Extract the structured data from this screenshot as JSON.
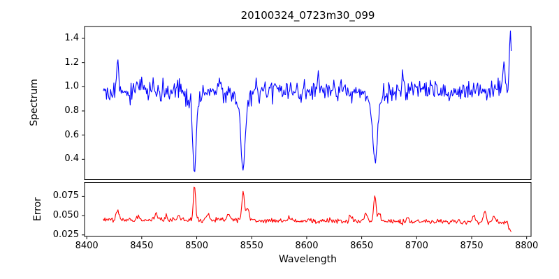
{
  "chart_data": {
    "type": "line",
    "title": "20100324_0723m30_099",
    "xlabel": "Wavelength",
    "xlim": [
      8398,
      8804
    ],
    "x_ticks": [
      "8400",
      "8450",
      "8500",
      "8550",
      "8600",
      "8650",
      "8700",
      "8750",
      "8800"
    ],
    "x_data_range": [
      8415,
      8786
    ],
    "n_points": 500,
    "seed": 20100324,
    "legend": "none",
    "grid": false,
    "panels": [
      {
        "name": "spectrum",
        "ylabel": "Spectrum",
        "ylim": [
          0.232,
          1.498
        ],
        "y_ticks": [
          "1.4",
          "1.2",
          "1.0",
          "0.8",
          "0.6",
          "0.4"
        ],
        "line_color": "#0000ff",
        "continuum_level": 0.965,
        "key_points": [
          {
            "x": 8428,
            "y": 1.25,
            "type": "emission-spike"
          },
          {
            "x": 8498,
            "y": 0.29,
            "type": "absorption-minimum"
          },
          {
            "x": 8542,
            "y": 0.31,
            "type": "absorption-minimum"
          },
          {
            "x": 8662,
            "y": 0.4,
            "type": "absorption-minimum"
          },
          {
            "x": 8785,
            "y": 1.43,
            "type": "edge-spike"
          }
        ],
        "synthesis": {
          "baseline": 0.965,
          "noise_sigma": 0.045,
          "absorptions": [
            {
              "center": 8498.0,
              "core_depth": 0.58,
              "core_sigma": 1.4,
              "wing_depth": 0.12,
              "wing_sigma": 5.0
            },
            {
              "center": 8542.1,
              "core_depth": 0.56,
              "core_sigma": 1.8,
              "wing_depth": 0.12,
              "wing_sigma": 6.0
            },
            {
              "center": 8662.1,
              "core_depth": 0.47,
              "core_sigma": 2.2,
              "wing_depth": 0.115,
              "wing_sigma": 7.0
            }
          ],
          "emissions": [
            {
              "center": 8428.0,
              "height": 0.29,
              "sigma": 0.9
            },
            {
              "center": 8520.0,
              "height": 0.17,
              "sigma": 0.7
            },
            {
              "center": 8610.0,
              "height": 0.14,
              "sigma": 0.7
            },
            {
              "center": 8687.0,
              "height": 0.16,
              "sigma": 0.7
            },
            {
              "center": 8779.0,
              "height": 0.2,
              "sigma": 0.8
            },
            {
              "center": 8785.3,
              "height": 0.46,
              "sigma": 0.9
            }
          ]
        }
      },
      {
        "name": "error",
        "ylabel": "Error",
        "ylim": [
          0.023,
          0.093
        ],
        "y_ticks": [
          "0.075",
          "0.050",
          "0.025"
        ],
        "line_color": "#ff0000",
        "baseline_level": 0.044,
        "key_points": [
          {
            "x": 8428,
            "y": 0.057,
            "type": "spike"
          },
          {
            "x": 8498,
            "y": 0.09,
            "type": "spike"
          },
          {
            "x": 8542,
            "y": 0.081,
            "type": "spike"
          },
          {
            "x": 8662,
            "y": 0.078,
            "type": "spike"
          },
          {
            "x": 8786,
            "y": 0.03,
            "type": "edge-dip"
          }
        ],
        "synthesis": {
          "baseline_start": 0.045,
          "baseline_end": 0.0415,
          "noise_sigma": 0.0016,
          "spikes": [
            {
              "center": 8428,
              "height": 0.012,
              "sigma": 1.2
            },
            {
              "center": 8447,
              "height": 0.005,
              "sigma": 1.0
            },
            {
              "center": 8463,
              "height": 0.007,
              "sigma": 1.4
            },
            {
              "center": 8472,
              "height": 0.005,
              "sigma": 1.0
            },
            {
              "center": 8484,
              "height": 0.007,
              "sigma": 1.4
            },
            {
              "center": 8498,
              "height": 0.045,
              "sigma": 1.0
            },
            {
              "center": 8510,
              "height": 0.008,
              "sigma": 1.3
            },
            {
              "center": 8529,
              "height": 0.009,
              "sigma": 1.3
            },
            {
              "center": 8542,
              "height": 0.036,
              "sigma": 1.2
            },
            {
              "center": 8546,
              "height": 0.014,
              "sigma": 1.8
            },
            {
              "center": 8585,
              "height": 0.004,
              "sigma": 1.2
            },
            {
              "center": 8640,
              "height": 0.006,
              "sigma": 1.4
            },
            {
              "center": 8654,
              "height": 0.01,
              "sigma": 1.6
            },
            {
              "center": 8662,
              "height": 0.033,
              "sigma": 1.0
            },
            {
              "center": 8666,
              "height": 0.013,
              "sigma": 1.1
            },
            {
              "center": 8692,
              "height": 0.004,
              "sigma": 1.2
            },
            {
              "center": 8752,
              "height": 0.008,
              "sigma": 1.1
            },
            {
              "center": 8762,
              "height": 0.013,
              "sigma": 1.2
            },
            {
              "center": 8770,
              "height": 0.006,
              "sigma": 1.1
            }
          ],
          "end_dip": {
            "start": 8782,
            "slope": 0.003
          }
        }
      }
    ]
  }
}
